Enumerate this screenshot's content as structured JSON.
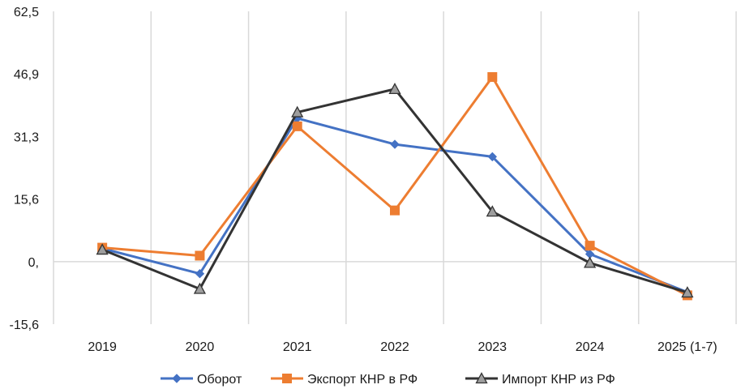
{
  "chart_data": {
    "type": "line",
    "title": "",
    "xlabel": "",
    "ylabel": "",
    "categories": [
      "2019",
      "2020",
      "2021",
      "2022",
      "2023",
      "2024",
      "2025 (1-7)"
    ],
    "y_ticks": [
      "62,5",
      "46,9",
      "31,3",
      "15,6",
      "0,",
      "-15,6"
    ],
    "ylim": [
      -15.6,
      62.5
    ],
    "grid": "vertical",
    "legend_position": "bottom",
    "series": [
      {
        "name": "Оборот",
        "color": "#4472C4",
        "marker": "diamond",
        "values": [
          3.3,
          -3.0,
          35.8,
          29.3,
          26.2,
          1.9,
          -7.6
        ]
      },
      {
        "name": "Экспорт КНР в РФ",
        "color": "#ED7D31",
        "marker": "square",
        "values": [
          3.5,
          1.5,
          33.8,
          12.8,
          46.1,
          4.0,
          -8.4
        ]
      },
      {
        "name": "Импорт КНР из РФ",
        "color": "#333333",
        "marker": "triangle",
        "values": [
          3.0,
          -6.8,
          37.3,
          43.1,
          12.5,
          -0.3,
          -7.7
        ]
      }
    ]
  }
}
